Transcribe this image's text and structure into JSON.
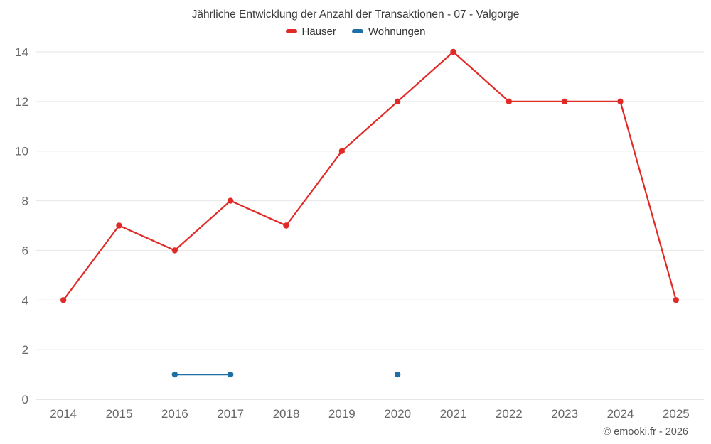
{
  "chart_data": {
    "type": "line",
    "title": "Jährliche Entwicklung der Anzahl der Transaktionen - 07 - Valgorge",
    "categories": [
      "2014",
      "2015",
      "2016",
      "2017",
      "2018",
      "2019",
      "2020",
      "2021",
      "2022",
      "2023",
      "2024",
      "2025"
    ],
    "series": [
      {
        "name": "Häuser",
        "color": "#e12a26",
        "values": [
          4,
          7,
          6,
          8,
          7,
          10,
          12,
          14,
          12,
          12,
          12,
          4
        ]
      },
      {
        "name": "Wohnungen",
        "color": "#1d6fa5",
        "values": [
          null,
          null,
          1,
          1,
          null,
          null,
          1,
          null,
          null,
          null,
          null,
          null
        ]
      }
    ],
    "xlabel": "",
    "ylabel": "",
    "ylim": [
      0,
      14
    ],
    "yticks": [
      0,
      2,
      4,
      6,
      8,
      10,
      12,
      14
    ],
    "grid": "horizontal",
    "legend_position": "top",
    "grid_color": "#e6e6e6",
    "baseline_color": "#cfcfcf",
    "tick_label_color": "#666666"
  },
  "footer": {
    "copyright": "© emooki.fr - 2026"
  }
}
